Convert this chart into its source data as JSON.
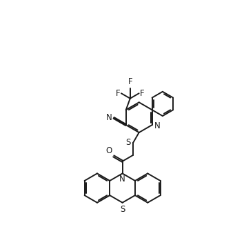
{
  "background_color": "#ffffff",
  "line_color": "#1a1a1a",
  "line_width": 1.4,
  "font_size": 8.5,
  "fig_width": 3.54,
  "fig_height": 3.58,
  "dpi": 100,
  "xlim": [
    0,
    10
  ],
  "ylim": [
    0,
    10
  ]
}
